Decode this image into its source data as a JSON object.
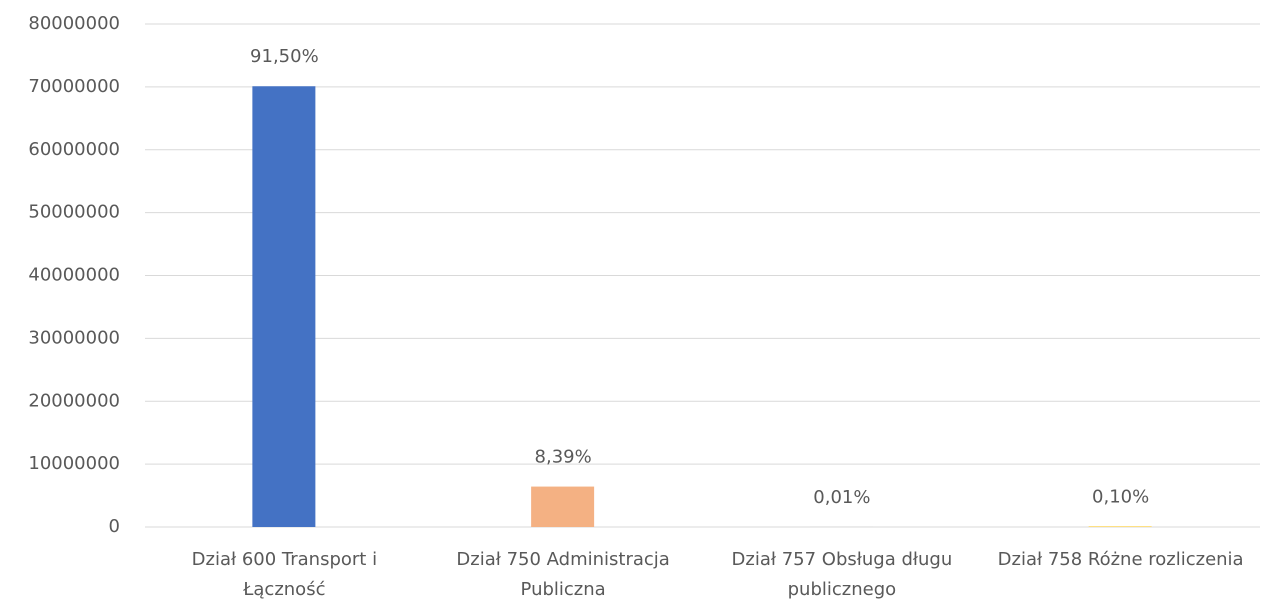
{
  "chart_data": {
    "type": "bar",
    "categories": [
      "Dział 600 Transport i Łączność",
      "Dział 750 Administracja Publiczna",
      "Dział 757 Obsługa długu publicznego",
      "Dział 758 Różne rozliczenia"
    ],
    "values": [
      70100000,
      6430000,
      7700,
      77000
    ],
    "colors": [
      "#4472c4",
      "#f4b183",
      "#a5a5a5",
      "#ffc000"
    ],
    "annotations": [
      "91,50%",
      "8,39%",
      "0,01%",
      "0,10%"
    ],
    "ylim": [
      0,
      80000000
    ],
    "yticks": [
      0,
      10000000,
      20000000,
      30000000,
      40000000,
      50000000,
      60000000,
      70000000,
      80000000
    ],
    "grid": true
  }
}
